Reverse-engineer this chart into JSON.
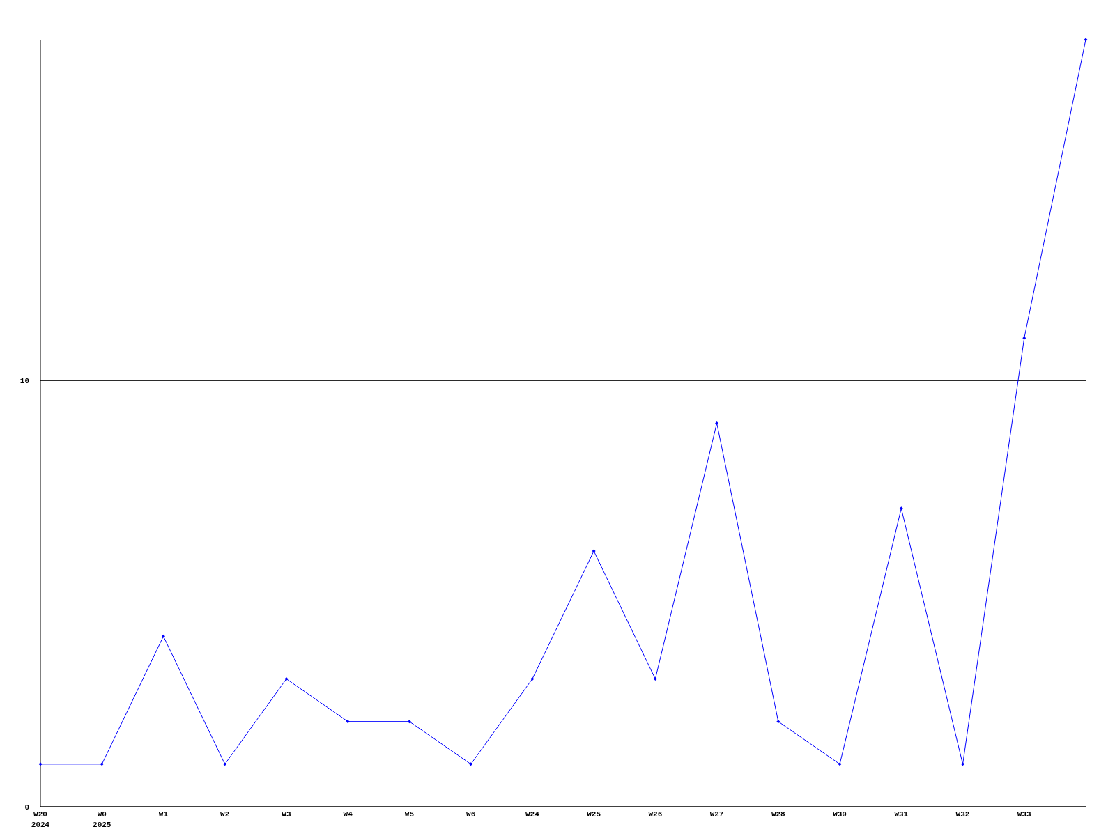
{
  "chart_data": {
    "type": "line",
    "categories": [
      "W20\n2024",
      "W0\n2025",
      "W1",
      "W2",
      "W3",
      "W4",
      "W5",
      "W6",
      "W24",
      "W25",
      "W26",
      "W27",
      "W28",
      "W30",
      "W31",
      "W32",
      "W33",
      null
    ],
    "series": [
      {
        "color": "#0000ff",
        "values": [
          1,
          1,
          4,
          1,
          3,
          2,
          2,
          1,
          3,
          6,
          3,
          9,
          2,
          1,
          7,
          1,
          11,
          18
        ]
      }
    ],
    "ylim": [
      0,
      18
    ],
    "yticks": [
      0,
      10
    ],
    "grid": "y",
    "marker": "diamond",
    "line_style": "solid"
  }
}
